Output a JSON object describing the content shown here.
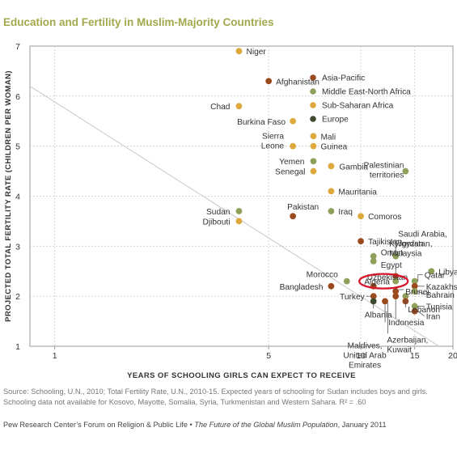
{
  "chart_data": {
    "type": "scatter",
    "title": "Education and Fertility in Muslim-Majority Countries",
    "xlabel": "YEARS OF SCHOOLING GIRLS CAN EXPECT TO RECEIVE",
    "ylabel": "PROJECTED TOTAL FERTILITY RATE (CHILDREN PER WOMAN)",
    "xscale": "log",
    "xlim": [
      0.83,
      20
    ],
    "ylim": [
      1,
      7
    ],
    "x_ticks": [
      1,
      5,
      10,
      15,
      20
    ],
    "y_ticks": [
      1,
      2,
      3,
      4,
      5,
      6,
      7
    ],
    "grid": true,
    "legend_position": "top-right",
    "highlight": "Algeria",
    "trendline": {
      "from": [
        0.83,
        6.2
      ],
      "to": [
        18,
        1.0
      ]
    },
    "regions": [
      {
        "name": "Asia-Pacific",
        "color": "#9b4a1f"
      },
      {
        "name": "Middle East-North Africa",
        "color": "#8fa05a"
      },
      {
        "name": "Sub-Saharan Africa",
        "color": "#dda83c"
      },
      {
        "name": "Europe",
        "color": "#3e4a30"
      }
    ],
    "points": [
      {
        "label": "Niger",
        "region": "Sub-Saharan Africa",
        "x": 4,
        "y": 6.9
      },
      {
        "label": "Afghanistan",
        "region": "Asia-Pacific",
        "x": 5,
        "y": 6.3
      },
      {
        "label": "Chad",
        "region": "Sub-Saharan Africa",
        "x": 4,
        "y": 5.8
      },
      {
        "label": "Burkina Faso",
        "region": "Sub-Saharan Africa",
        "x": 6,
        "y": 5.5
      },
      {
        "label": "Mali",
        "region": "Sub-Saharan Africa",
        "x": 7,
        "y": 5.2
      },
      {
        "label": "Sierra Leone",
        "region": "Sub-Saharan Africa",
        "x": 6,
        "y": 5.0
      },
      {
        "label": "Guinea",
        "region": "Sub-Saharan Africa",
        "x": 7,
        "y": 5.0
      },
      {
        "label": "Yemen",
        "region": "Middle East-North Africa",
        "x": 7,
        "y": 4.7
      },
      {
        "label": "Senegal",
        "region": "Sub-Saharan Africa",
        "x": 7,
        "y": 4.5
      },
      {
        "label": "Gambia",
        "region": "Sub-Saharan Africa",
        "x": 8,
        "y": 4.6
      },
      {
        "label": "Palestinian territories",
        "region": "Middle East-North Africa",
        "x": 14,
        "y": 4.5
      },
      {
        "label": "Mauritania",
        "region": "Sub-Saharan Africa",
        "x": 8,
        "y": 4.1
      },
      {
        "label": "Sudan",
        "region": "Middle East-North Africa",
        "x": 4,
        "y": 3.7
      },
      {
        "label": "Djibouti",
        "region": "Sub-Saharan Africa",
        "x": 4,
        "y": 3.5
      },
      {
        "label": "Pakistan",
        "region": "Asia-Pacific",
        "x": 6,
        "y": 3.6
      },
      {
        "label": "Iraq",
        "region": "Middle East-North Africa",
        "x": 8,
        "y": 3.7
      },
      {
        "label": "Comoros",
        "region": "Sub-Saharan Africa",
        "x": 10,
        "y": 3.6
      },
      {
        "label": "Tajikistan",
        "region": "Asia-Pacific",
        "x": 10,
        "y": 3.1
      },
      {
        "label": "Saudi Arabia, Jordan",
        "region": "Middle East-North Africa",
        "x": 13,
        "y": 2.8
      },
      {
        "label": "Oman",
        "region": "Middle East-North Africa",
        "x": 11,
        "y": 2.8
      },
      {
        "label": "Egypt",
        "region": "Middle East-North Africa",
        "x": 11,
        "y": 2.7
      },
      {
        "label": "Morocco",
        "region": "Middle East-North Africa",
        "x": 9,
        "y": 2.3
      },
      {
        "label": "Kyrgyzstan, Malaysia",
        "region": "Asia-Pacific",
        "x": 13,
        "y": 2.4
      },
      {
        "label": "Qatar",
        "region": "Middle East-North Africa",
        "x": 15,
        "y": 2.3
      },
      {
        "label": "Libya",
        "region": "Middle East-North Africa",
        "x": 17,
        "y": 2.5
      },
      {
        "label": "Uzbekistan",
        "region": "Asia-Pacific",
        "x": 11,
        "y": 2.2
      },
      {
        "label": "Algeria",
        "region": "Middle East-North Africa",
        "x": 13,
        "y": 2.3
      },
      {
        "label": "Bangladesh",
        "region": "Asia-Pacific",
        "x": 8,
        "y": 2.2
      },
      {
        "label": "Brunei",
        "region": "Asia-Pacific",
        "x": 13,
        "y": 2.1
      },
      {
        "label": "Kazakhstan",
        "region": "Asia-Pacific",
        "x": 15,
        "y": 2.2
      },
      {
        "label": "Turkey",
        "region": "Asia-Pacific",
        "x": 11,
        "y": 2.0
      },
      {
        "label": "Bahrain",
        "region": "Middle East-North Africa",
        "x": 15,
        "y": 2.1
      },
      {
        "label": "Albania",
        "region": "Europe",
        "x": 11,
        "y": 1.9
      },
      {
        "label": "Lebanon",
        "region": "Middle East-North Africa",
        "x": 14,
        "y": 2.0
      },
      {
        "label": "Tunisia",
        "region": "Middle East-North Africa",
        "x": 15,
        "y": 1.8
      },
      {
        "label": "Maldives, United Arab Emirates",
        "region": "Asia-Pacific",
        "x": 12,
        "y": 1.9
      },
      {
        "label": "Indonesia",
        "region": "Asia-Pacific",
        "x": 13,
        "y": 2.0
      },
      {
        "label": "Azerbaijan, Kuwait",
        "region": "Asia-Pacific",
        "x": 14,
        "y": 1.9
      },
      {
        "label": "Iran",
        "region": "Asia-Pacific",
        "x": 15,
        "y": 1.7
      }
    ]
  },
  "footer": {
    "source_line1": "Source: Schooling, U.N., 2010; Total Fertility Rate, U.N., 2010-15. Expected years of schooling for Sudan includes boys and girls.",
    "source_line2": "Schooling data not available for Kosovo, Mayotte, Somalia, Syria, Turkmenistan and Western Sahara. R² = .60",
    "credit_prefix": "Pew Research Center’s Forum on Religion & Public Life • ",
    "credit_title": "The Future of the Global Muslim Population",
    "credit_date": ", January 2011"
  }
}
